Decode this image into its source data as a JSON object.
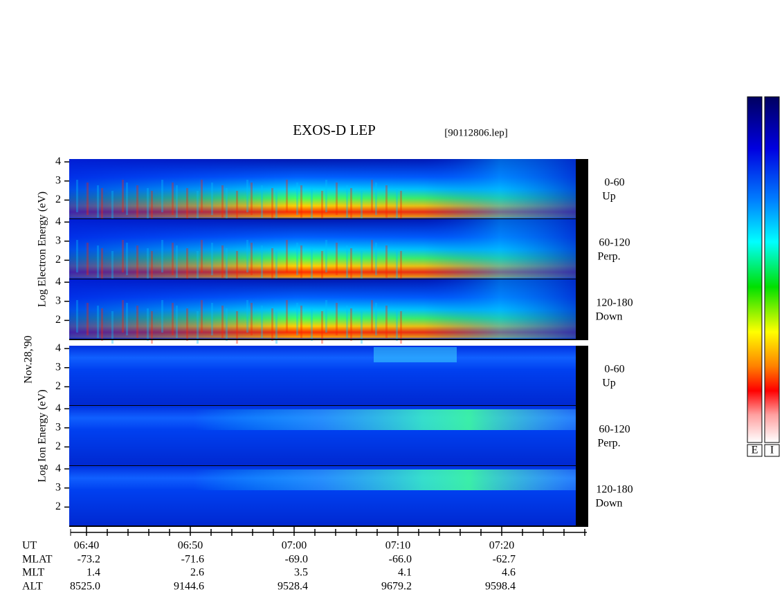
{
  "title": "EXOS-D LEP",
  "file": "[90112806.lep]",
  "date_label": "Nov.28,'90",
  "groups": [
    {
      "axis_label": "Log  Electron  Energy (eV)",
      "panels": [
        {
          "yticks": [
            4,
            3,
            2
          ],
          "angle": "0-60",
          "direction": "Up"
        },
        {
          "yticks": [
            4,
            3,
            2
          ],
          "angle": "60-120",
          "direction": "Perp."
        },
        {
          "yticks": [
            4,
            3,
            2
          ],
          "angle": "120-180",
          "direction": "Down"
        }
      ]
    },
    {
      "axis_label": "Log  Ion  Energy (eV)",
      "panels": [
        {
          "yticks": [
            4,
            3,
            2
          ],
          "angle": "0-60",
          "direction": "Up"
        },
        {
          "yticks": [
            4,
            3,
            2
          ],
          "angle": "60-120",
          "direction": "Perp."
        },
        {
          "yticks": [
            4,
            3,
            2
          ],
          "angle": "120-180",
          "direction": "Down"
        }
      ]
    }
  ],
  "ylim": [
    1,
    4.15
  ],
  "orbit": [
    {
      "label": "UT",
      "values": [
        "06:40",
        "06:50",
        "07:00",
        "07:10",
        "07:20"
      ]
    },
    {
      "label": "MLAT",
      "values": [
        "-73.2",
        "-71.6",
        "-69.0",
        "-66.0",
        "-62.7"
      ]
    },
    {
      "label": "MLT",
      "values": [
        "1.4",
        "2.6",
        "3.5",
        "4.1",
        "4.6"
      ]
    },
    {
      "label": "ALT",
      "values": [
        "8525.0",
        "9144.6",
        "9528.4",
        "9679.2",
        "9598.4"
      ]
    }
  ],
  "colorbars": [
    "E",
    "I"
  ]
}
